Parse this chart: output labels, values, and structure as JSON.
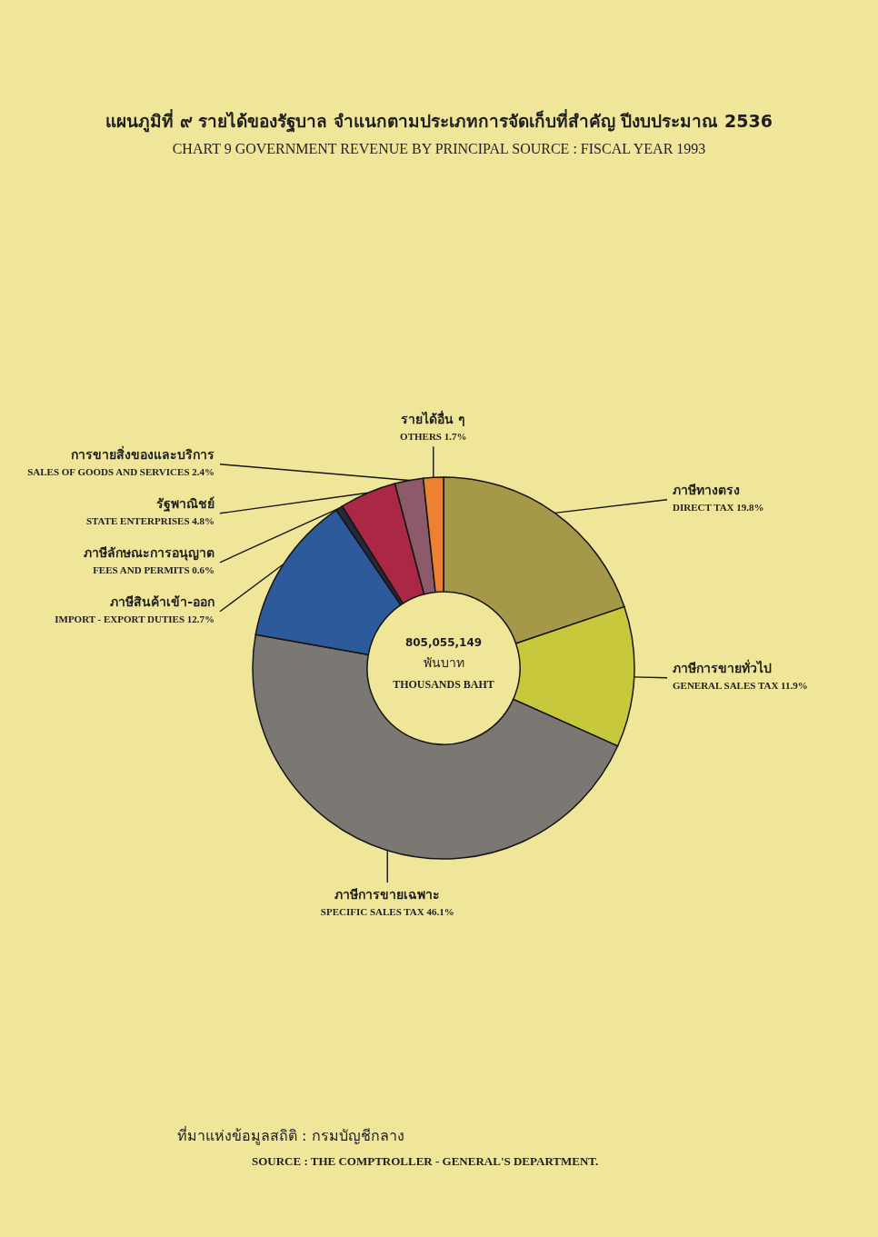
{
  "chart_data": {
    "type": "donut",
    "title": "แผนภูมิที่ ๙ รายได้ของรัฐบาล จำแนกตามประเภทการจัดเก็บที่สำคัญ ปีงบประมาณ 2536",
    "subtitle": "CHART 9 GOVERNMENT REVENUE BY PRINCIPAL SOURCE : FISCAL YEAR 1993",
    "categories": [
      "ภาษีทางตรง\nDIRECT TAX",
      "ภาษีการขายทั่วไป\nGENERAL SALES TAX",
      "ภาษีการขายเฉพาะ\nSPECIFIC SALES TAX",
      "ภาษีสินค้าเข้า-ออก\nIMPORT - EXPORT DUTIES",
      "ภาษีลักษณะการอนุญาต\nFEES AND PERMITS",
      "รัฐพาณิชย์\nSTATE ENTERPRISES",
      "การขายสิ่งของและบริการ\nSALES OF GOODS AND SERVICES",
      "รายได้อื่น ๆ\nOTHERS"
    ],
    "values": [
      19.8,
      11.9,
      46.1,
      12.7,
      0.6,
      4.8,
      2.4,
      1.7
    ],
    "colors": [
      "#a59848",
      "#c8c83c",
      "#7b7772",
      "#2d5a9b",
      "#28283c",
      "#aa2846",
      "#8c5a69",
      "#eb8232"
    ],
    "value_labels": [
      "19.8%",
      "11.9%",
      "46.1%",
      "12.7%",
      "0.6%",
      "4.8%",
      "2.4%",
      "1.7%"
    ],
    "annotations": [
      "805,055,149\nพันบาท\nTHOUSANDS BAHT",
      "ที่มาแห่งข้อมูลสถิติ : กรมบัญชีกลาง\nSOURCE : THE COMPTROLLER - GENERAL'S DEPARTMENT."
    ]
  }
}
